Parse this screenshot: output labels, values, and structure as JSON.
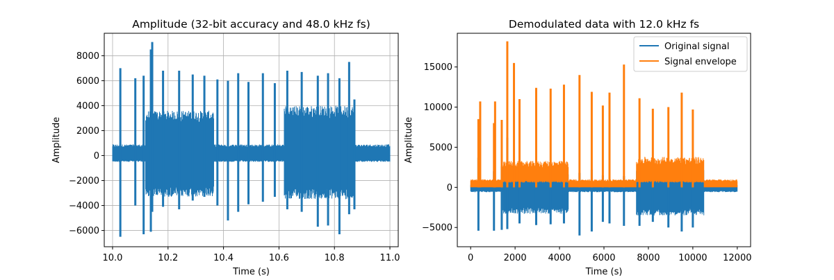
{
  "chart_data": [
    {
      "type": "line",
      "title": "Amplitude (32-bit accuracy and 48.0 kHz fs)",
      "xlabel": "Time (s)",
      "ylabel": "Amplitude",
      "xlim": [
        9.97,
        11.03
      ],
      "ylim": [
        -7300,
        9800
      ],
      "xticks": [
        10.0,
        10.2,
        10.4,
        10.6,
        10.8,
        11.0
      ],
      "xtick_labels": [
        "10.0",
        "10.2",
        "10.4",
        "10.6",
        "10.8",
        "11.0"
      ],
      "yticks": [
        -6000,
        -4000,
        -2000,
        0,
        2000,
        4000,
        6000,
        8000
      ],
      "ytick_labels": [
        "−6000",
        "−4000",
        "−2000",
        "0",
        "2000",
        "4000",
        "6000",
        "8000"
      ],
      "grid": true,
      "series": [
        {
          "color": "#1f77b4",
          "x_range": [
            10.0,
            11.0
          ],
          "baseline_band": [
            -500,
            900
          ],
          "loud_segments": [
            {
              "start": 10.118,
              "end": 10.365,
              "min": -3300,
              "max": 3600
            },
            {
              "start": 10.618,
              "end": 10.87,
              "min": -3500,
              "max": 4000
            }
          ],
          "spikes": [
            {
              "x": 10.028,
              "max": 7000,
              "min": -6500
            },
            {
              "x": 10.082,
              "max": 6200,
              "min": -4000
            },
            {
              "x": 10.112,
              "max": 6400,
              "min": -6300
            },
            {
              "x": 10.138,
              "max": 8500,
              "min": -6100
            },
            {
              "x": 10.143,
              "max": 9100,
              "min": -4500
            },
            {
              "x": 10.182,
              "max": 6800,
              "min": -4100
            },
            {
              "x": 10.24,
              "max": 6800,
              "min": -4300
            },
            {
              "x": 10.289,
              "max": 6500,
              "min": -3600
            },
            {
              "x": 10.331,
              "max": 6400,
              "min": -3300
            },
            {
              "x": 10.378,
              "max": 6100,
              "min": -4000
            },
            {
              "x": 10.416,
              "max": 6000,
              "min": -5200
            },
            {
              "x": 10.453,
              "max": 6600,
              "min": -4500
            },
            {
              "x": 10.49,
              "max": 5900,
              "min": -3900
            },
            {
              "x": 10.542,
              "max": 6600,
              "min": -3700
            },
            {
              "x": 10.585,
              "max": 5800,
              "min": -3300
            },
            {
              "x": 10.63,
              "max": 6800,
              "min": -4300
            },
            {
              "x": 10.682,
              "max": 6700,
              "min": -4500
            },
            {
              "x": 10.74,
              "max": 6400,
              "min": -5700
            },
            {
              "x": 10.777,
              "max": 6600,
              "min": -5600
            },
            {
              "x": 10.818,
              "max": 6200,
              "min": -6300
            },
            {
              "x": 10.853,
              "max": 7500,
              "min": -4700
            },
            {
              "x": 10.872,
              "max": 4500,
              "min": -4300
            }
          ]
        }
      ]
    },
    {
      "type": "line",
      "title": "Demodulated data with 12.0 kHz fs",
      "xlabel": "Time (s)",
      "ylabel": "Amplitude",
      "xlim": [
        -600,
        12600
      ],
      "ylim": [
        -7400,
        19200
      ],
      "xticks": [
        0,
        2000,
        4000,
        6000,
        8000,
        10000,
        12000
      ],
      "xtick_labels": [
        "0",
        "2000",
        "4000",
        "6000",
        "8000",
        "10000",
        "12000"
      ],
      "yticks": [
        -5000,
        0,
        5000,
        10000,
        15000
      ],
      "ytick_labels": [
        "−5000",
        "0",
        "5000",
        "10000",
        "15000"
      ],
      "grid": false,
      "legend": {
        "position": "top-right",
        "entries": [
          "Original signal",
          "Signal envelope"
        ]
      },
      "series": [
        {
          "name": "Original signal",
          "color": "#1f77b4",
          "x_range": [
            0,
            12000
          ],
          "baseline_band": [
            -600,
            300
          ],
          "loud_segments": [
            {
              "start": 1450,
              "end": 4400,
              "min": -3300,
              "max": 2000
            },
            {
              "start": 7450,
              "end": 10500,
              "min": -3500,
              "max": 2500
            }
          ],
          "spikes": [
            {
              "x": 350,
              "max": 3700,
              "min": -5400
            },
            {
              "x": 1050,
              "max": 2000,
              "min": -5400
            },
            {
              "x": 1400,
              "max": 2600,
              "min": -5300
            },
            {
              "x": 1650,
              "max": 6200,
              "min": -5200
            },
            {
              "x": 2200,
              "max": 2500,
              "min": -4500
            },
            {
              "x": 2950,
              "max": 2400,
              "min": -4700
            },
            {
              "x": 3600,
              "max": 2000,
              "min": -4600
            },
            {
              "x": 4200,
              "max": 1500,
              "min": -4500
            },
            {
              "x": 4900,
              "max": 1800,
              "min": -6000
            },
            {
              "x": 5450,
              "max": 2200,
              "min": -5500
            },
            {
              "x": 5950,
              "max": 1500,
              "min": -4300
            },
            {
              "x": 6250,
              "max": 1300,
              "min": -4500
            },
            {
              "x": 6900,
              "max": 1400,
              "min": -4800
            },
            {
              "x": 7600,
              "max": 1400,
              "min": -4800
            },
            {
              "x": 8200,
              "max": 1400,
              "min": -4300
            },
            {
              "x": 8900,
              "max": 1400,
              "min": -5000
            },
            {
              "x": 9500,
              "max": 1400,
              "min": -5500
            },
            {
              "x": 10000,
              "max": 1400,
              "min": -5000
            }
          ]
        },
        {
          "name": "Signal envelope",
          "color": "#ff7f0e",
          "x_range": [
            0,
            12000
          ],
          "baseline_band": [
            0,
            1000
          ],
          "loud_segments": [
            {
              "start": 1450,
              "end": 4400,
              "min": 800,
              "max": 3300
            },
            {
              "start": 7450,
              "end": 10500,
              "min": 800,
              "max": 3800
            }
          ],
          "spikes": [
            {
              "x": 350,
              "max": 8500,
              "min": 0
            },
            {
              "x": 430,
              "max": 10700,
              "min": 0
            },
            {
              "x": 1050,
              "max": 8000,
              "min": 0
            },
            {
              "x": 1100,
              "max": 10700,
              "min": 0
            },
            {
              "x": 1400,
              "max": 8400,
              "min": 0
            },
            {
              "x": 1650,
              "max": 18200,
              "min": 0
            },
            {
              "x": 1950,
              "max": 15500,
              "min": 0
            },
            {
              "x": 2200,
              "max": 11000,
              "min": 0
            },
            {
              "x": 2950,
              "max": 12400,
              "min": 0
            },
            {
              "x": 3600,
              "max": 12300,
              "min": 0
            },
            {
              "x": 4200,
              "max": 12800,
              "min": 0
            },
            {
              "x": 4900,
              "max": 14000,
              "min": 0
            },
            {
              "x": 5450,
              "max": 11900,
              "min": 0
            },
            {
              "x": 5950,
              "max": 10200,
              "min": 0
            },
            {
              "x": 6250,
              "max": 11800,
              "min": 0
            },
            {
              "x": 6900,
              "max": 15300,
              "min": 0
            },
            {
              "x": 7600,
              "max": 11100,
              "min": 0
            },
            {
              "x": 8200,
              "max": 9800,
              "min": 0
            },
            {
              "x": 8900,
              "max": 10000,
              "min": 0
            },
            {
              "x": 9500,
              "max": 11800,
              "min": 0
            },
            {
              "x": 10000,
              "max": 9700,
              "min": 0
            }
          ]
        }
      ]
    }
  ]
}
